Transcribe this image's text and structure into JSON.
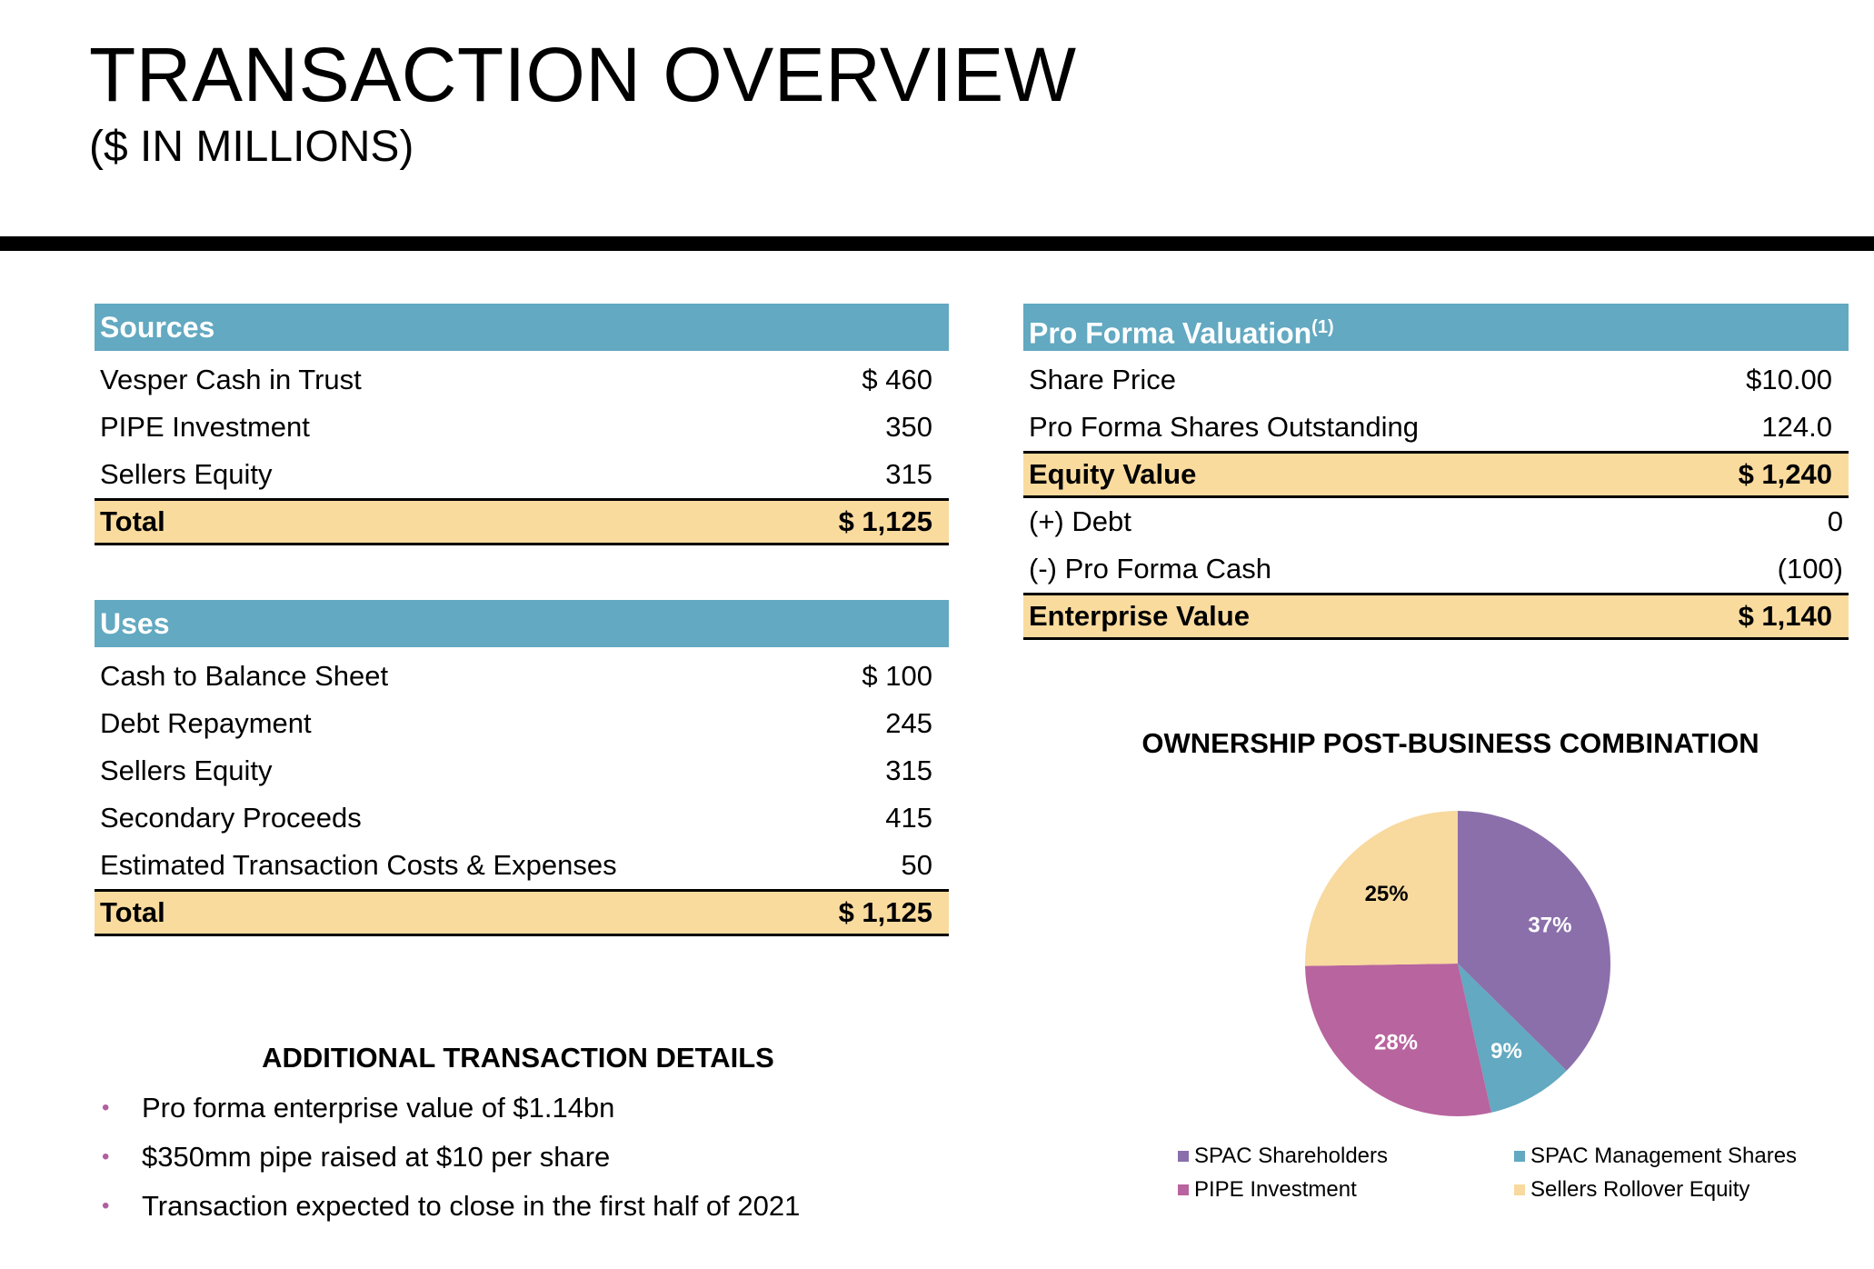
{
  "title": "TRANSACTION OVERVIEW",
  "subtitle": "($ IN MILLIONS)",
  "sources": {
    "header": "Sources",
    "rows": [
      {
        "label": "Vesper Cash in Trust",
        "value": "$ 460"
      },
      {
        "label": "PIPE Investment",
        "value": "350"
      },
      {
        "label": "Sellers Equity",
        "value": "315"
      }
    ],
    "total": {
      "label": "Total",
      "value": "$ 1,125"
    }
  },
  "uses": {
    "header": "Uses",
    "rows": [
      {
        "label": "Cash to Balance Sheet",
        "value": "$ 100"
      },
      {
        "label": "Debt Repayment",
        "value": "245"
      },
      {
        "label": "Sellers Equity",
        "value": "315"
      },
      {
        "label": "Secondary Proceeds",
        "value": "415"
      },
      {
        "label": "Estimated Transaction Costs & Expenses",
        "value": "50"
      }
    ],
    "total": {
      "label": "Total",
      "value": "$ 1,125"
    }
  },
  "valuation": {
    "header": "Pro Forma Valuation",
    "header_note": "(1)",
    "share_price": {
      "label": "Share Price",
      "value": "$10.00"
    },
    "shares_out": {
      "label": "Pro Forma Shares Outstanding",
      "value": "124.0"
    },
    "equity_value": {
      "label": "Equity Value",
      "value": "$ 1,240"
    },
    "debt": {
      "label": "(+) Debt",
      "value": "0"
    },
    "cash": {
      "label": "(-) Pro Forma Cash",
      "value": "(100)"
    },
    "enterprise_value": {
      "label": "Enterprise Value",
      "value": "$ 1,140"
    }
  },
  "details": {
    "title": "ADDITIONAL TRANSACTION DETAILS",
    "bullets": [
      "Pro forma enterprise value of $1.14bn",
      "$350mm pipe raised at $10 per share",
      "Transaction expected to close in the first half of 2021"
    ]
  },
  "chart_data": {
    "type": "pie",
    "title": "OWNERSHIP POST-BUSINESS COMBINATION",
    "slices": [
      {
        "name": "SPAC Shareholders",
        "value": 37,
        "label": "37%",
        "color": "#8b6fab"
      },
      {
        "name": "SPAC Management Shares",
        "value": 9,
        "label": "9%",
        "color": "#62a9c1"
      },
      {
        "name": "PIPE Investment",
        "value": 28,
        "label": "28%",
        "color": "#b8649e"
      },
      {
        "name": "Sellers Rollover Equity",
        "value": 25,
        "label": "25%",
        "color": "#f8d99e"
      }
    ],
    "legend_position": "bottom"
  }
}
